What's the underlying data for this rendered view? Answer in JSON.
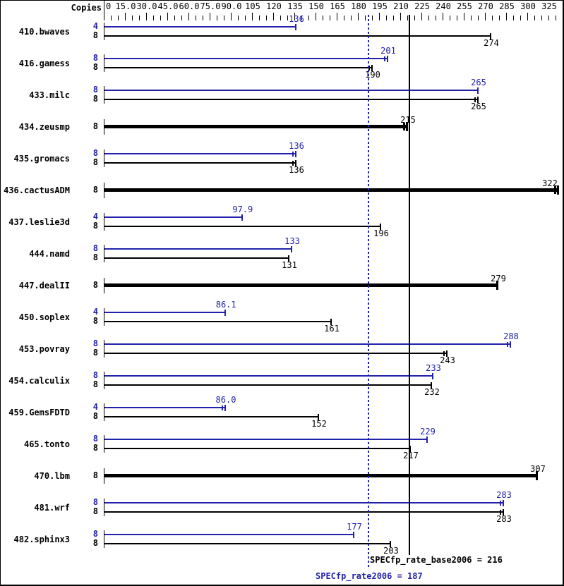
{
  "chart_data": {
    "type": "bar",
    "orientation": "horizontal",
    "copies_label": "Copies",
    "axis": {
      "min": 0,
      "max": 325,
      "minor_step": 5,
      "tick_values": [
        0,
        15,
        30,
        45,
        60,
        75,
        90,
        105,
        120,
        135,
        150,
        165,
        180,
        195,
        210,
        225,
        240,
        255,
        270,
        285,
        300,
        325
      ],
      "tick_labels": [
        "0",
        "15.0",
        "30.0",
        "45.0",
        "60.0",
        "75.0",
        "90.0",
        "105",
        "120",
        "135",
        "150",
        "165",
        "180",
        "195",
        "210",
        "225",
        "240",
        "255",
        "270",
        "285",
        "300",
        "325"
      ]
    },
    "series_colors": {
      "peak": "#2222aa",
      "base": "#000000"
    },
    "reference_lines": [
      {
        "name": "SPECfp_rate_base2006",
        "value": 216,
        "style": "solid",
        "color": "#000000"
      },
      {
        "name": "SPECfp_rate2006",
        "value": 187,
        "style": "dotted",
        "color": "#2222aa"
      }
    ],
    "benchmarks": [
      {
        "name": "410.bwaves",
        "bars": [
          {
            "series": "peak",
            "copies": "4",
            "value": 136,
            "label": "136",
            "double_cap": false
          },
          {
            "series": "base",
            "copies": "8",
            "value": 274,
            "label": "274",
            "double_cap": false
          }
        ]
      },
      {
        "name": "416.gamess",
        "bars": [
          {
            "series": "peak",
            "copies": "8",
            "value": 201,
            "label": "201",
            "double_cap": true
          },
          {
            "series": "base",
            "copies": "8",
            "value": 190,
            "label": "190",
            "double_cap": true
          }
        ]
      },
      {
        "name": "433.milc",
        "bars": [
          {
            "series": "peak",
            "copies": "8",
            "value": 265,
            "label": "265",
            "double_cap": false
          },
          {
            "series": "base",
            "copies": "8",
            "value": 265,
            "label": "265",
            "double_cap": true
          }
        ]
      },
      {
        "name": "434.zeusmp",
        "bars": [
          {
            "series": "base",
            "copies": "8",
            "value": 215,
            "label": "215",
            "double_cap": true
          }
        ]
      },
      {
        "name": "435.gromacs",
        "bars": [
          {
            "series": "peak",
            "copies": "8",
            "value": 136,
            "label": "136",
            "double_cap": true
          },
          {
            "series": "base",
            "copies": "8",
            "value": 136,
            "label": "136",
            "double_cap": true
          }
        ]
      },
      {
        "name": "436.cactusADM",
        "bars": [
          {
            "series": "base",
            "copies": "8",
            "value": 322,
            "label": "322",
            "double_cap": true
          }
        ]
      },
      {
        "name": "437.leslie3d",
        "bars": [
          {
            "series": "peak",
            "copies": "4",
            "value": 97.9,
            "label": "97.9",
            "double_cap": false
          },
          {
            "series": "base",
            "copies": "8",
            "value": 196,
            "label": "196",
            "double_cap": false
          }
        ]
      },
      {
        "name": "444.namd",
        "bars": [
          {
            "series": "peak",
            "copies": "8",
            "value": 133,
            "label": "133",
            "double_cap": false
          },
          {
            "series": "base",
            "copies": "8",
            "value": 131,
            "label": "131",
            "double_cap": false
          }
        ]
      },
      {
        "name": "447.dealII",
        "bars": [
          {
            "series": "base",
            "copies": "8",
            "value": 279,
            "label": "279",
            "double_cap": false
          }
        ]
      },
      {
        "name": "450.soplex",
        "bars": [
          {
            "series": "peak",
            "copies": "4",
            "value": 86.1,
            "label": "86.1",
            "double_cap": false
          },
          {
            "series": "base",
            "copies": "8",
            "value": 161,
            "label": "161",
            "double_cap": false
          }
        ]
      },
      {
        "name": "453.povray",
        "bars": [
          {
            "series": "peak",
            "copies": "8",
            "value": 288,
            "label": "288",
            "double_cap": true
          },
          {
            "series": "base",
            "copies": "8",
            "value": 243,
            "label": "243",
            "double_cap": true
          }
        ]
      },
      {
        "name": "454.calculix",
        "bars": [
          {
            "series": "peak",
            "copies": "8",
            "value": 233,
            "label": "233",
            "double_cap": false
          },
          {
            "series": "base",
            "copies": "8",
            "value": 232,
            "label": "232",
            "double_cap": false
          }
        ]
      },
      {
        "name": "459.GemsFDTD",
        "bars": [
          {
            "series": "peak",
            "copies": "4",
            "value": 86.0,
            "label": "86.0",
            "double_cap": true
          },
          {
            "series": "base",
            "copies": "8",
            "value": 152,
            "label": "152",
            "double_cap": false
          }
        ]
      },
      {
        "name": "465.tonto",
        "bars": [
          {
            "series": "peak",
            "copies": "8",
            "value": 229,
            "label": "229",
            "double_cap": false
          },
          {
            "series": "base",
            "copies": "8",
            "value": 217,
            "label": "217",
            "double_cap": false
          }
        ]
      },
      {
        "name": "470.lbm",
        "bars": [
          {
            "series": "base",
            "copies": "8",
            "value": 307,
            "label": "307",
            "double_cap": false
          }
        ]
      },
      {
        "name": "481.wrf",
        "bars": [
          {
            "series": "peak",
            "copies": "8",
            "value": 283,
            "label": "283",
            "double_cap": true
          },
          {
            "series": "base",
            "copies": "8",
            "value": 283,
            "label": "283",
            "double_cap": true
          }
        ]
      },
      {
        "name": "482.sphinx3",
        "bars": [
          {
            "series": "peak",
            "copies": "8",
            "value": 177,
            "label": "177",
            "double_cap": false
          },
          {
            "series": "base",
            "copies": "8",
            "value": 203,
            "label": "203",
            "double_cap": false
          }
        ]
      }
    ]
  },
  "footer": {
    "base_label": "SPECfp_rate_base2006 = 216",
    "peak_label": "SPECfp_rate2006 = 187"
  }
}
